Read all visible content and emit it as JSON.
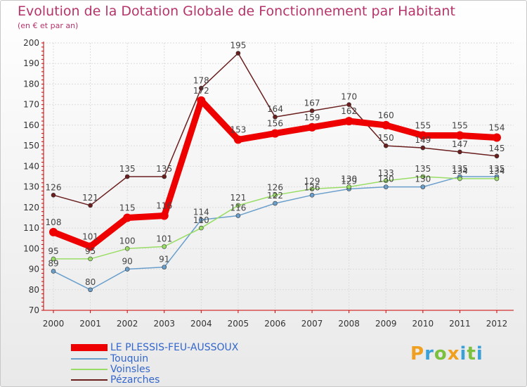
{
  "title": "Evolution de la Dotation Globale de Fonctionnement par Habitant",
  "subtitle": "(en € et par an)",
  "brand": {
    "letters": [
      "P",
      "r",
      "o",
      "x",
      "i",
      "t",
      "i"
    ],
    "colors": [
      "#f0a020",
      "#3aa0d8",
      "#7cc040",
      "#f0a020",
      "#3aa0d8",
      "#7cc040",
      "#3aa0d8"
    ]
  },
  "chart_data": {
    "type": "line",
    "title": "Evolution de la Dotation Globale de Fonctionnement par Habitant",
    "ylabel": "(en € et par an)",
    "xlabel": "",
    "categories": [
      "2000",
      "2001",
      "2002",
      "2003",
      "2004",
      "2005",
      "2006",
      "2007",
      "2008",
      "2009",
      "2010",
      "2011",
      "2012"
    ],
    "ylim": [
      70,
      200
    ],
    "yticks": [
      70,
      80,
      90,
      100,
      110,
      120,
      130,
      140,
      150,
      160,
      170,
      180,
      190,
      200
    ],
    "grid": true,
    "legend_position": "bottom-left",
    "series": [
      {
        "name": "LE PLESSIS-FEU-AUSSOUX",
        "color": "#ee0000",
        "values": [
          108,
          101,
          115,
          116,
          172,
          153,
          156,
          159,
          162,
          160,
          155,
          155,
          154
        ]
      },
      {
        "name": "Touquin",
        "color": "#6a9fcc",
        "values": [
          89,
          80,
          90,
          91,
          114,
          116,
          122,
          126,
          129,
          130,
          130,
          135,
          135
        ]
      },
      {
        "name": "Voinsles",
        "color": "#99dd66",
        "values": [
          95,
          95,
          100,
          101,
          110,
          121,
          126,
          129,
          130,
          133,
          135,
          134,
          134
        ]
      },
      {
        "name": "Pézarches",
        "color": "#6a1e1e",
        "values": [
          126,
          121,
          135,
          135,
          178,
          195,
          164,
          167,
          170,
          150,
          149,
          147,
          145
        ]
      }
    ]
  }
}
